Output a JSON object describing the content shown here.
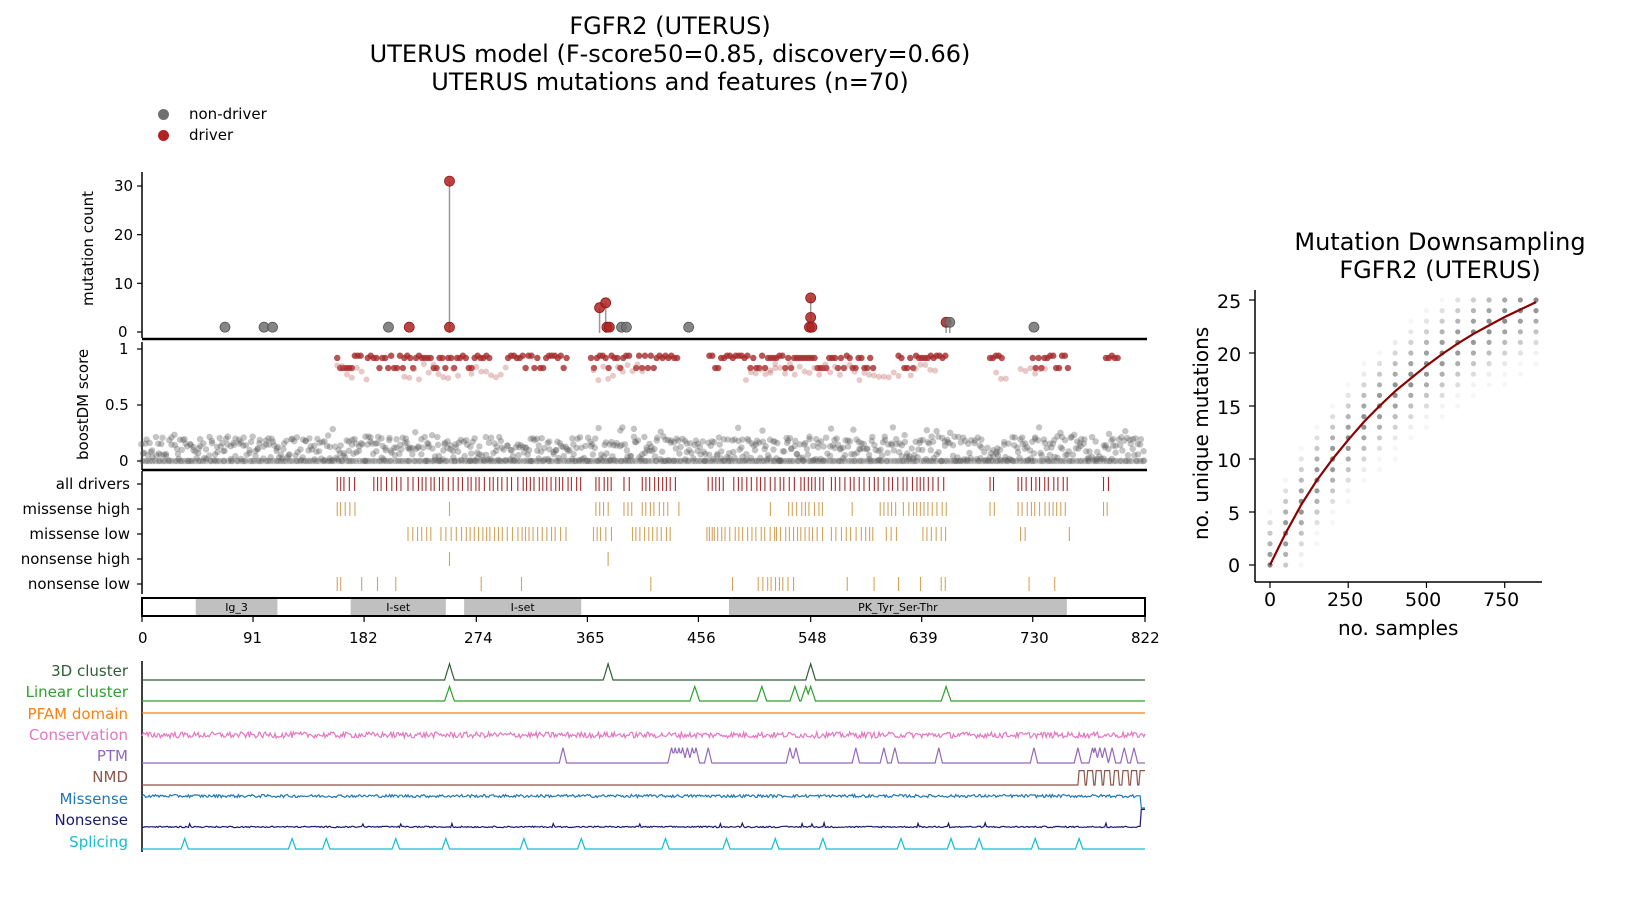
{
  "header": {
    "title_line1": "FGFR2 (UTERUS)",
    "title_line2": "UTERUS model (F-score50=0.85, discovery=0.66)",
    "title_line3": "UTERUS mutations and features (n=70)"
  },
  "legend": {
    "non_driver": {
      "label": "non-driver",
      "color": "#707070"
    },
    "driver": {
      "label": "driver",
      "color": "#b22222"
    }
  },
  "colors": {
    "driver": "#a52a2a",
    "missense": "#d4a35c",
    "grey": "#606060",
    "domain": "#c0c0c0",
    "fit": "#8b0000"
  },
  "chart_data": [
    {
      "type": "scatter",
      "name": "mutation-lollipop",
      "ylabel": "mutation count",
      "ylim": [
        0,
        32
      ],
      "yticks": [
        0,
        10,
        20,
        30
      ],
      "xlim": [
        0,
        822
      ],
      "points": [
        {
          "pos": 68,
          "count": 1,
          "driver": false
        },
        {
          "pos": 100,
          "count": 1,
          "driver": false
        },
        {
          "pos": 107,
          "count": 1,
          "driver": false
        },
        {
          "pos": 202,
          "count": 1,
          "driver": false
        },
        {
          "pos": 219,
          "count": 1,
          "driver": true
        },
        {
          "pos": 252,
          "count": 31,
          "driver": true
        },
        {
          "pos": 252,
          "count": 1,
          "driver": true
        },
        {
          "pos": 375,
          "count": 5,
          "driver": true
        },
        {
          "pos": 380,
          "count": 6,
          "driver": true
        },
        {
          "pos": 381,
          "count": 1,
          "driver": true
        },
        {
          "pos": 383,
          "count": 1,
          "driver": true
        },
        {
          "pos": 393,
          "count": 1,
          "driver": false
        },
        {
          "pos": 397,
          "count": 1,
          "driver": false
        },
        {
          "pos": 448,
          "count": 1,
          "driver": false
        },
        {
          "pos": 548,
          "count": 7,
          "driver": true
        },
        {
          "pos": 548,
          "count": 3,
          "driver": true
        },
        {
          "pos": 547,
          "count": 1,
          "driver": true
        },
        {
          "pos": 549,
          "count": 1,
          "driver": true
        },
        {
          "pos": 659,
          "count": 2,
          "driver": true
        },
        {
          "pos": 662,
          "count": 2,
          "driver": false
        },
        {
          "pos": 731,
          "count": 1,
          "driver": false
        }
      ]
    },
    {
      "type": "scatter",
      "name": "boostdm-score",
      "ylabel": "boostDM score",
      "ylim": [
        0,
        1
      ],
      "yticks": [
        "0",
        "0.5",
        "1"
      ],
      "xlim": [
        0,
        822
      ],
      "driver_segments": [
        [
          160,
          180
        ],
        [
          185,
          215
        ],
        [
          215,
          285
        ],
        [
          300,
          350
        ],
        [
          368,
          400
        ],
        [
          405,
          440
        ],
        [
          465,
          520
        ],
        [
          520,
          600
        ],
        [
          620,
          660
        ],
        [
          695,
          705
        ],
        [
          730,
          760
        ],
        [
          790,
          800
        ]
      ],
      "low_segments": [
        [
          160,
          185
        ],
        [
          215,
          260
        ],
        [
          270,
          300
        ],
        [
          370,
          410
        ],
        [
          495,
          520
        ],
        [
          515,
          560
        ],
        [
          560,
          620
        ],
        [
          630,
          650
        ],
        [
          700,
          710
        ],
        [
          720,
          740
        ]
      ]
    },
    {
      "type": "table",
      "name": "driver-tracks",
      "tracks": [
        {
          "label": "all drivers",
          "color": "#a52a2a",
          "segments": [
            [
              160,
              175
            ],
            [
              190,
              215
            ],
            [
              218,
              252
            ],
            [
              255,
              283
            ],
            [
              285,
              305
            ],
            [
              308,
              360
            ],
            [
              372,
              385
            ],
            [
              395,
              403
            ],
            [
              410,
              440
            ],
            [
              464,
              480
            ],
            [
              485,
              520
            ],
            [
              523,
              535
            ],
            [
              540,
              560
            ],
            [
              565,
              605
            ],
            [
              608,
              660
            ],
            [
              695,
              700
            ],
            [
              718,
              760
            ],
            [
              788,
              795
            ]
          ]
        },
        {
          "label": "missense high",
          "color": "#d4a35c",
          "segments": [
            [
              160,
              175
            ],
            [
              252,
              253
            ],
            [
              372,
              385
            ],
            [
              395,
              403
            ],
            [
              410,
              433
            ],
            [
              440,
              441
            ],
            [
              515,
              516
            ],
            [
              530,
              560
            ],
            [
              582,
              583
            ],
            [
              605,
              620
            ],
            [
              624,
              660
            ],
            [
              695,
              700
            ],
            [
              718,
              760
            ],
            [
              788,
              795
            ]
          ]
        },
        {
          "label": "missense low",
          "color": "#d4a35c",
          "segments": [
            [
              218,
              240
            ],
            [
              245,
              350
            ],
            [
              370,
              385
            ],
            [
              402,
              435
            ],
            [
              463,
              470
            ],
            [
              465,
              520
            ],
            [
              520,
              560
            ],
            [
              565,
              600
            ],
            [
              610,
              620
            ],
            [
              640,
              660
            ],
            [
              720,
              725
            ],
            [
              760,
              762
            ]
          ]
        },
        {
          "label": "nonsense high",
          "color": "#d4a35c",
          "segments": [
            [
              252,
              253
            ],
            [
              382,
              383
            ]
          ]
        },
        {
          "label": "nonsense low",
          "color": "#d4a35c",
          "segments": [
            [
              160,
              164
            ],
            [
              180,
              181
            ],
            [
              193,
              194
            ],
            [
              208,
              209
            ],
            [
              278,
              279
            ],
            [
              311,
              312
            ],
            [
              417,
              420
            ],
            [
              484,
              485
            ],
            [
              505,
              530
            ],
            [
              534,
              535
            ],
            [
              578,
              579
            ],
            [
              600,
              601
            ],
            [
              620,
              621
            ],
            [
              638,
              639
            ],
            [
              655,
              660
            ],
            [
              727,
              728
            ],
            [
              748,
              749
            ]
          ]
        }
      ]
    },
    {
      "type": "bar",
      "name": "protein-domains",
      "xticks": [
        0,
        91,
        182,
        274,
        365,
        456,
        548,
        639,
        730,
        822
      ],
      "domains": [
        {
          "label": "Ig_3",
          "start": 44,
          "end": 111
        },
        {
          "label": "I-set",
          "start": 171,
          "end": 249
        },
        {
          "label": "I-set",
          "start": 264,
          "end": 360
        },
        {
          "label": "PK_Tyr_Ser-Thr",
          "start": 481,
          "end": 758
        }
      ]
    },
    {
      "type": "line",
      "name": "feature-tracks",
      "features": [
        {
          "label": "3D cluster",
          "color": "#2f5e36",
          "kind": "peaks",
          "peaks": [
            252,
            382,
            548
          ],
          "height": 0.9,
          "width": 3
        },
        {
          "label": "Linear cluster",
          "color": "#2ca02c",
          "kind": "peaks",
          "peaks": [
            252,
            453,
            508,
            535,
            544,
            548,
            659
          ],
          "height": 0.85,
          "width": 3
        },
        {
          "label": "PFAM domain",
          "color": "#ff7f0e",
          "kind": "flat"
        },
        {
          "label": "Conservation",
          "color": "#e377c2",
          "kind": "noise",
          "level": 0.5,
          "amp": 0.3
        },
        {
          "label": "PTM",
          "color": "#9467bd",
          "kind": "peaks",
          "peaks": [
            345,
            434,
            437,
            440,
            443,
            447,
            451,
            454,
            464,
            531,
            536,
            585,
            608,
            617,
            653,
            731,
            767,
            779,
            781,
            785,
            789,
            795,
            805,
            813
          ],
          "height": 0.9,
          "width": 2
        },
        {
          "label": "NMD",
          "color": "#8c564b",
          "kind": "nmd",
          "start": 765,
          "end": 822
        },
        {
          "label": "Missense",
          "color": "#1f77b4",
          "kind": "noise",
          "level": 0.7,
          "amp": 0.15
        },
        {
          "label": "Nonsense",
          "color": "#1a1a6e",
          "kind": "noise_low",
          "level": 0.15,
          "amp": 0.05
        },
        {
          "label": "Splicing",
          "color": "#17becf",
          "kind": "peaks",
          "peaks": [
            35,
            123,
            151,
            208,
            249,
            313,
            360,
            429,
            479,
            519,
            558,
            622,
            663,
            686,
            732,
            768
          ],
          "height": 0.75,
          "width": 2
        }
      ]
    },
    {
      "type": "scatter",
      "name": "mutation-downsampling",
      "title_line1": "Mutation Downsampling",
      "title_line2": "FGFR2 (UTERUS)",
      "xlabel": "no. samples",
      "ylabel": "no. unique mutations",
      "xlim": [
        0,
        870
      ],
      "ylim": [
        0,
        26
      ],
      "xticks": [
        0,
        250,
        500,
        750
      ],
      "yticks": [
        0,
        5,
        10,
        15,
        20,
        25
      ],
      "fit_x": [
        0,
        50,
        100,
        150,
        200,
        250,
        300,
        350,
        400,
        450,
        500,
        550,
        600,
        650,
        700,
        750,
        800,
        850
      ],
      "fit_y": [
        0,
        3.0,
        5.7,
        8.0,
        10.0,
        11.8,
        13.5,
        15.0,
        16.4,
        17.6,
        18.8,
        19.9,
        20.9,
        21.8,
        22.6,
        23.4,
        24.1,
        24.8
      ]
    }
  ]
}
